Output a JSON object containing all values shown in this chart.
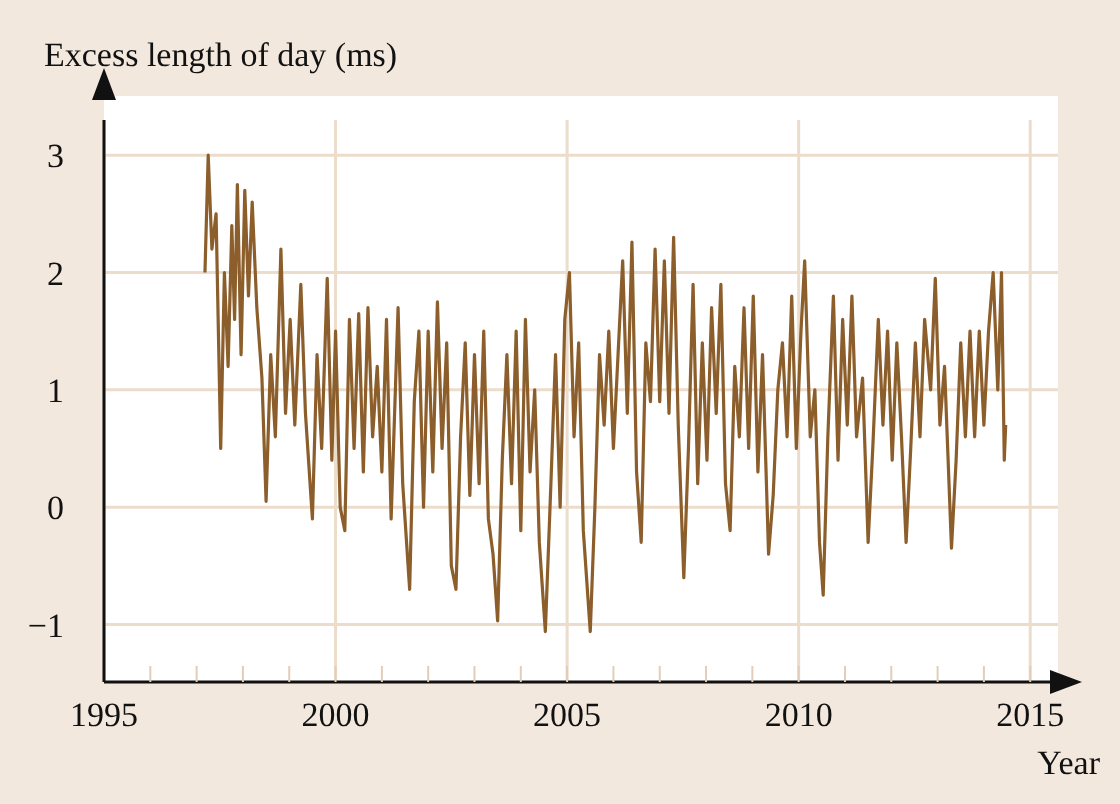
{
  "chart_data": {
    "type": "line",
    "ylabel": "Excess length of day (ms)",
    "xlabel": "Year",
    "x": [
      1997.18,
      1997.25,
      1997.33,
      1997.42,
      1997.52,
      1997.6,
      1997.68,
      1997.76,
      1997.82,
      1997.88,
      1997.96,
      1998.04,
      1998.12,
      1998.2,
      1998.3,
      1998.41,
      1998.5,
      1998.6,
      1998.7,
      1998.82,
      1998.92,
      1999.02,
      1999.12,
      1999.25,
      1999.35,
      1999.5,
      1999.6,
      1999.7,
      1999.82,
      1999.92,
      2000.0,
      2000.1,
      2000.2,
      2000.3,
      2000.4,
      2000.5,
      2000.6,
      2000.7,
      2000.8,
      2000.9,
      2001.0,
      2001.1,
      2001.2,
      2001.35,
      2001.45,
      2001.6,
      2001.7,
      2001.8,
      2001.9,
      2002.0,
      2002.1,
      2002.2,
      2002.3,
      2002.4,
      2002.5,
      2002.6,
      2002.7,
      2002.8,
      2002.9,
      2003.0,
      2003.1,
      2003.2,
      2003.3,
      2003.4,
      2003.5,
      2003.6,
      2003.7,
      2003.8,
      2003.9,
      2004.0,
      2004.1,
      2004.2,
      2004.3,
      2004.4,
      2004.53,
      2004.65,
      2004.75,
      2004.85,
      2004.95,
      2005.05,
      2005.15,
      2005.25,
      2005.35,
      2005.5,
      2005.6,
      2005.7,
      2005.8,
      2005.9,
      2006.0,
      2006.1,
      2006.2,
      2006.3,
      2006.4,
      2006.5,
      2006.6,
      2006.7,
      2006.8,
      2006.9,
      2007.0,
      2007.1,
      2007.2,
      2007.3,
      2007.4,
      2007.52,
      2007.62,
      2007.72,
      2007.82,
      2007.92,
      2008.02,
      2008.12,
      2008.22,
      2008.32,
      2008.42,
      2008.52,
      2008.62,
      2008.72,
      2008.82,
      2008.92,
      2009.02,
      2009.12,
      2009.22,
      2009.35,
      2009.45,
      2009.55,
      2009.65,
      2009.75,
      2009.85,
      2009.95,
      2010.05,
      2010.13,
      2010.25,
      2010.35,
      2010.45,
      2010.53,
      2010.63,
      2010.75,
      2010.85,
      2010.95,
      2011.05,
      2011.15,
      2011.25,
      2011.38,
      2011.5,
      2011.6,
      2011.72,
      2011.82,
      2011.92,
      2012.02,
      2012.12,
      2012.22,
      2012.32,
      2012.42,
      2012.52,
      2012.62,
      2012.72,
      2012.85,
      2012.95,
      2013.05,
      2013.15,
      2013.3,
      2013.4,
      2013.5,
      2013.6,
      2013.7,
      2013.8,
      2013.9,
      2014.0,
      2014.1,
      2014.2,
      2014.3,
      2014.38,
      2014.44,
      2014.47
    ],
    "series": [
      {
        "color": "#8b5e2b",
        "values": [
          2.0,
          3.0,
          2.2,
          2.5,
          0.5,
          2.0,
          1.2,
          2.4,
          1.6,
          2.75,
          1.3,
          2.7,
          1.8,
          2.6,
          1.7,
          1.1,
          0.05,
          1.3,
          0.6,
          2.2,
          0.8,
          1.6,
          0.7,
          1.9,
          0.8,
          -0.1,
          1.3,
          0.5,
          1.95,
          0.4,
          1.5,
          0.0,
          -0.2,
          1.6,
          0.5,
          1.65,
          0.3,
          1.7,
          0.6,
          1.2,
          0.3,
          1.6,
          -0.1,
          1.7,
          0.2,
          -0.7,
          0.9,
          1.5,
          0.0,
          1.5,
          0.3,
          1.75,
          0.5,
          1.4,
          -0.5,
          -0.7,
          0.6,
          1.4,
          0.1,
          1.3,
          0.2,
          1.5,
          -0.1,
          -0.4,
          -0.97,
          0.4,
          1.3,
          0.2,
          1.5,
          -0.2,
          1.6,
          0.3,
          1.0,
          -0.3,
          -1.06,
          0.2,
          1.3,
          0.0,
          1.6,
          2.0,
          0.6,
          1.4,
          -0.2,
          -1.06,
          0.0,
          1.3,
          0.7,
          1.5,
          0.5,
          1.3,
          2.1,
          0.8,
          2.26,
          0.3,
          -0.3,
          1.4,
          0.9,
          2.2,
          0.9,
          2.1,
          0.8,
          2.3,
          0.7,
          -0.6,
          0.5,
          1.9,
          0.2,
          1.4,
          0.4,
          1.7,
          0.8,
          1.9,
          0.2,
          -0.2,
          1.2,
          0.6,
          1.7,
          0.5,
          1.8,
          0.3,
          1.3,
          -0.4,
          0.1,
          1.0,
          1.4,
          0.6,
          1.8,
          0.5,
          1.5,
          2.1,
          0.6,
          1.0,
          -0.3,
          -0.75,
          0.6,
          1.8,
          0.4,
          1.6,
          0.7,
          1.8,
          0.6,
          1.1,
          -0.3,
          0.5,
          1.6,
          0.7,
          1.5,
          0.4,
          1.4,
          0.6,
          -0.3,
          0.5,
          1.4,
          0.6,
          1.6,
          1.0,
          1.95,
          0.7,
          1.2,
          -0.35,
          0.4,
          1.4,
          0.6,
          1.5,
          0.6,
          1.5,
          0.7,
          1.5,
          2.0,
          1.0,
          2.0,
          0.4,
          0.7
        ]
      }
    ],
    "xlim": [
      1995,
      2015.6
    ],
    "xticks": [
      1995,
      {
        "value": 1996,
        "label": null
      },
      {
        "value": 1997,
        "label": null
      },
      {
        "value": 1998,
        "label": null
      },
      {
        "value": 1999,
        "label": null
      },
      2000,
      {
        "value": 2001,
        "label": null
      },
      {
        "value": 2002,
        "label": null
      },
      {
        "value": 2003,
        "label": null
      },
      {
        "value": 2004,
        "label": null
      },
      2005,
      {
        "value": 2006,
        "label": null
      },
      {
        "value": 2007,
        "label": null
      },
      {
        "value": 2008,
        "label": null
      },
      {
        "value": 2009,
        "label": null
      },
      2010,
      {
        "value": 2011,
        "label": null
      },
      {
        "value": 2012,
        "label": null
      },
      {
        "value": 2013,
        "label": null
      },
      {
        "value": 2014,
        "label": null
      },
      2015
    ],
    "ylim": [
      -1.49,
      3.3
    ],
    "yticks": [
      {
        "value": -1,
        "label": "−1"
      },
      0,
      1,
      2,
      3
    ],
    "grid": true,
    "marker": "none",
    "line_style": "solid"
  }
}
